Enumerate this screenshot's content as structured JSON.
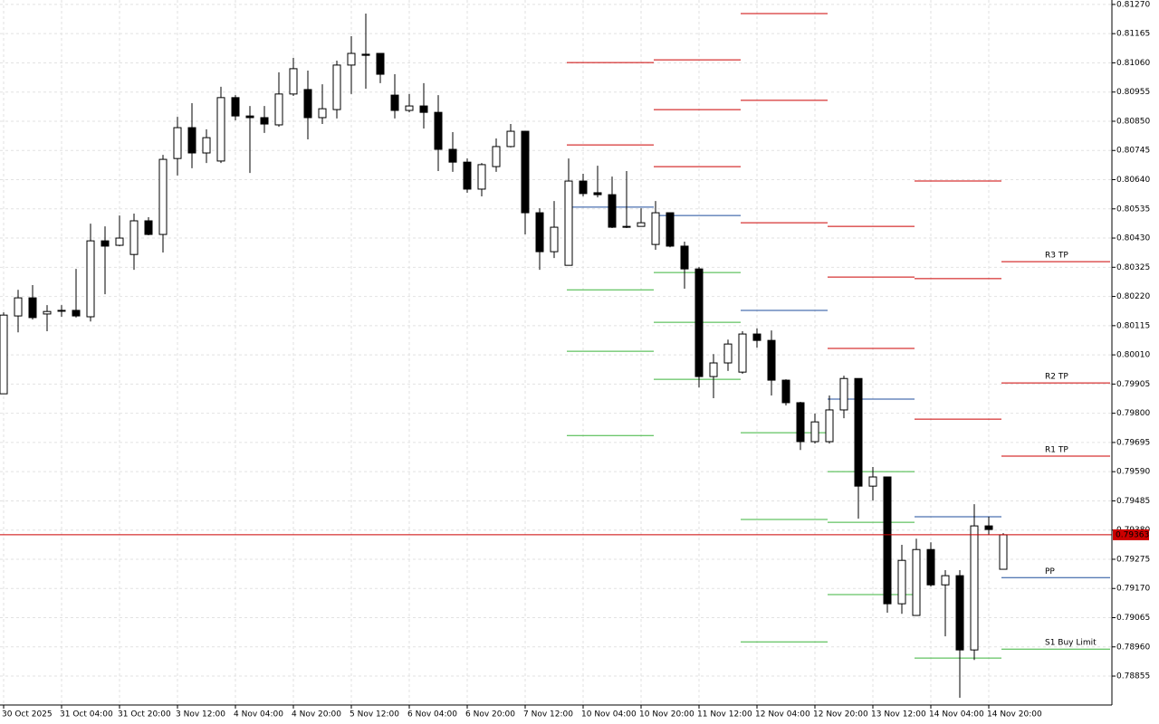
{
  "chart_data": {
    "type": "candlestick",
    "categories": [
      "30 Oct 2025",
      null,
      null,
      null,
      "31 Oct 04:00",
      null,
      null,
      null,
      "31 Oct 20:00",
      null,
      null,
      null,
      "3 Nov 12:00",
      null,
      null,
      null,
      "4 Nov 04:00",
      null,
      null,
      null,
      "4 Nov 20:00",
      null,
      null,
      null,
      "5 Nov 12:00",
      null,
      null,
      null,
      "6 Nov 04:00",
      null,
      null,
      null,
      "6 Nov 20:00",
      null,
      null,
      null,
      "7 Nov 12:00",
      null,
      null,
      null,
      "10 Nov 04:00",
      null,
      null,
      null,
      "10 Nov 20:00",
      null,
      null,
      null,
      "11 Nov 12:00",
      null,
      null,
      null,
      "12 Nov 04:00",
      null,
      null,
      null,
      "12 Nov 20:00",
      null,
      null,
      null,
      "13 Nov 12:00",
      null,
      null,
      null,
      "14 Nov 04:00",
      null,
      null,
      null,
      "14 Nov 20:00",
      null
    ],
    "open": [
      0.7987,
      0.8015,
      0.80215,
      0.80157,
      0.8017,
      0.8017,
      0.80147,
      0.8042,
      0.80404,
      0.80371,
      0.80492,
      0.80443,
      0.80716,
      0.80827,
      0.80736,
      0.80707,
      0.80935,
      0.80869,
      0.80863,
      0.80837,
      0.80948,
      0.80964,
      0.80863,
      0.80892,
      0.81052,
      0.81091,
      0.81094,
      0.80944,
      0.80889,
      0.80905,
      0.80882,
      0.80749,
      0.80703,
      0.80606,
      0.80687,
      0.80759,
      0.80814,
      0.80521,
      0.80381,
      0.80332,
      0.80635,
      0.80593,
      0.80586,
      0.80472,
      0.80472,
      0.80407,
      0.80521,
      0.80401,
      0.80319,
      0.79932,
      0.79981,
      0.79948,
      0.80085,
      0.80062,
      0.79919,
      0.79838,
      0.79698,
      0.79698,
      0.79812,
      0.79925,
      0.79538,
      0.79571,
      0.79115,
      0.79073,
      0.7931,
      0.79183,
      0.79216,
      0.78949,
      0.79395,
      0.79239
    ],
    "high": [
      0.80163,
      0.80244,
      0.80261,
      0.80189,
      0.80189,
      0.80319,
      0.80482,
      0.80472,
      0.80511,
      0.80518,
      0.80505,
      0.80729,
      0.80866,
      0.80915,
      0.80821,
      0.80974,
      0.80944,
      0.80905,
      0.80905,
      0.81026,
      0.81078,
      0.81032,
      0.80983,
      0.81068,
      0.81156,
      0.81237,
      0.81094,
      0.81019,
      0.80948,
      0.80987,
      0.80944,
      0.80811,
      0.80716,
      0.807,
      0.80788,
      0.8084,
      0.80814,
      0.80537,
      0.80563,
      0.80716,
      0.80661,
      0.8069,
      0.80651,
      0.80671,
      0.80537,
      0.80563,
      0.80521,
      0.80417,
      0.80326,
      0.80013,
      0.80065,
      0.80095,
      0.80105,
      0.80098,
      0.79922,
      0.79841,
      0.79799,
      0.79864,
      0.79935,
      0.79925,
      0.79607,
      0.79571,
      0.79327,
      0.79349,
      0.79336,
      0.79236,
      0.79236,
      0.79473,
      0.79428,
      0.79369
    ],
    "low": [
      0.7987,
      0.80091,
      0.80137,
      0.80095,
      0.80147,
      0.80144,
      0.8013,
      0.80228,
      0.80401,
      0.80316,
      0.8044,
      0.80378,
      0.80655,
      0.80681,
      0.807,
      0.807,
      0.80853,
      0.80664,
      0.80808,
      0.8083,
      0.80941,
      0.80785,
      0.8084,
      0.8086,
      0.80948,
      0.80967,
      0.80987,
      0.8086,
      0.80882,
      0.80824,
      0.80671,
      0.80668,
      0.80593,
      0.8058,
      0.80668,
      0.80756,
      0.80443,
      0.80316,
      0.80358,
      0.80332,
      0.8058,
      0.80576,
      0.80466,
      0.80466,
      0.80472,
      0.80388,
      0.80397,
      0.80248,
      0.79893,
      0.79854,
      0.79952,
      0.79942,
      0.80036,
      0.79864,
      0.79828,
      0.79668,
      0.79691,
      0.79691,
      0.79782,
      0.79421,
      0.79486,
      0.79083,
      0.79079,
      0.79073,
      0.79177,
      0.78998,
      0.78777,
      0.78913,
      0.79362,
      0.79239
    ],
    "close": [
      0.80153,
      0.80215,
      0.80144,
      0.80166,
      0.8017,
      0.8015,
      0.8042,
      0.80401,
      0.8043,
      0.80492,
      0.80443,
      0.80713,
      0.80827,
      0.80736,
      0.80791,
      0.80935,
      0.80869,
      0.80863,
      0.8084,
      0.80948,
      0.81039,
      0.80863,
      0.80895,
      0.81052,
      0.81094,
      0.81087,
      0.81019,
      0.80889,
      0.80905,
      0.80882,
      0.80749,
      0.80703,
      0.80606,
      0.80694,
      0.80759,
      0.80814,
      0.80521,
      0.80381,
      0.80469,
      0.80635,
      0.8059,
      0.80586,
      0.80469,
      0.80469,
      0.80485,
      0.80521,
      0.80401,
      0.80319,
      0.79932,
      0.79981,
      0.80049,
      0.80085,
      0.80062,
      0.79919,
      0.79838,
      0.79698,
      0.79769,
      0.79812,
      0.79925,
      0.79538,
      0.79571,
      0.79115,
      0.79271,
      0.7931,
      0.79183,
      0.79216,
      0.78949,
      0.79395,
      0.79382,
      0.79363
    ],
    "up_color": "#ffffff",
    "down_color": "#000000",
    "wick_color": "#000000",
    "levels": [
      {
        "color": "#cc0000",
        "values": [
          null,
          null,
          null,
          null,
          null,
          null,
          null,
          null,
          null,
          null,
          null,
          null,
          null,
          null,
          null,
          null,
          null,
          null,
          null,
          null,
          null,
          null,
          null,
          null,
          null,
          null,
          null,
          null,
          null,
          null,
          null,
          null,
          null,
          null,
          null,
          null,
          null,
          null,
          null,
          0.81061,
          null,
          null,
          null,
          null,
          null,
          0.81071,
          null,
          null,
          null,
          null,
          null,
          0.81237,
          null,
          null,
          null,
          null,
          null,
          0.80472,
          null,
          null,
          null,
          null,
          null,
          0.80635,
          null,
          null,
          null,
          null,
          null,
          null
        ]
      },
      {
        "color": "#cc0000",
        "values": [
          null,
          null,
          null,
          null,
          null,
          null,
          null,
          null,
          null,
          null,
          null,
          null,
          null,
          null,
          null,
          null,
          null,
          null,
          null,
          null,
          null,
          null,
          null,
          null,
          null,
          null,
          null,
          null,
          null,
          null,
          null,
          null,
          null,
          null,
          null,
          null,
          null,
          null,
          null,
          0.80765,
          null,
          null,
          null,
          null,
          null,
          0.80892,
          null,
          null,
          null,
          null,
          null,
          0.80925,
          null,
          null,
          null,
          null,
          null,
          0.8029,
          null,
          null,
          null,
          null,
          null,
          0.80284,
          null,
          null,
          null,
          null,
          null,
          null
        ]
      },
      {
        "color": "#cc0000",
        "values": [
          null,
          null,
          null,
          null,
          null,
          null,
          null,
          null,
          null,
          null,
          null,
          null,
          null,
          null,
          null,
          null,
          null,
          null,
          null,
          null,
          null,
          null,
          null,
          null,
          null,
          null,
          null,
          null,
          null,
          null,
          null,
          null,
          null,
          null,
          null,
          null,
          null,
          null,
          null,
          null,
          null,
          null,
          null,
          null,
          null,
          0.80687,
          null,
          null,
          null,
          null,
          null,
          0.80485,
          null,
          null,
          null,
          null,
          null,
          0.80033,
          null,
          null,
          null,
          null,
          null,
          0.79779,
          null,
          null,
          null,
          null,
          null,
          null
        ]
      },
      {
        "color": "#1f4e9c",
        "values": [
          null,
          null,
          null,
          null,
          null,
          null,
          null,
          null,
          null,
          null,
          null,
          null,
          null,
          null,
          null,
          null,
          null,
          null,
          null,
          null,
          null,
          null,
          null,
          null,
          null,
          null,
          null,
          null,
          null,
          null,
          null,
          null,
          null,
          null,
          null,
          null,
          null,
          null,
          null,
          0.80541,
          null,
          null,
          null,
          null,
          null,
          0.80511,
          null,
          null,
          null,
          null,
          null,
          0.8017,
          null,
          null,
          null,
          null,
          null,
          0.79851,
          null,
          null,
          null,
          null,
          null,
          0.79428,
          null,
          null,
          null,
          null,
          null,
          null
        ]
      },
      {
        "color": "#3cb43c",
        "values": [
          null,
          null,
          null,
          null,
          null,
          null,
          null,
          null,
          null,
          null,
          null,
          null,
          null,
          null,
          null,
          null,
          null,
          null,
          null,
          null,
          null,
          null,
          null,
          null,
          null,
          null,
          null,
          null,
          null,
          null,
          null,
          null,
          null,
          null,
          null,
          null,
          null,
          null,
          null,
          0.80244,
          null,
          null,
          null,
          null,
          null,
          0.80306,
          null,
          null,
          null,
          null,
          null,
          0.7973,
          null,
          null,
          null,
          null,
          null,
          0.7959,
          null,
          null,
          null,
          null,
          null,
          0.7892,
          null,
          null,
          null,
          null,
          null,
          null
        ]
      },
      {
        "color": "#3cb43c",
        "values": [
          null,
          null,
          null,
          null,
          null,
          null,
          null,
          null,
          null,
          null,
          null,
          null,
          null,
          null,
          null,
          null,
          null,
          null,
          null,
          null,
          null,
          null,
          null,
          null,
          null,
          null,
          null,
          null,
          null,
          null,
          null,
          null,
          null,
          null,
          null,
          null,
          null,
          null,
          null,
          0.80023,
          null,
          null,
          null,
          null,
          null,
          0.80127,
          null,
          null,
          null,
          null,
          null,
          0.79418,
          null,
          null,
          null,
          null,
          null,
          0.79408,
          null,
          null,
          null,
          null,
          null,
          null,
          null,
          null,
          null,
          null,
          null,
          null
        ]
      },
      {
        "color": "#3cb43c",
        "values": [
          null,
          null,
          null,
          null,
          null,
          null,
          null,
          null,
          null,
          null,
          null,
          null,
          null,
          null,
          null,
          null,
          null,
          null,
          null,
          null,
          null,
          null,
          null,
          null,
          null,
          null,
          null,
          null,
          null,
          null,
          null,
          null,
          null,
          null,
          null,
          null,
          null,
          null,
          null,
          0.7972,
          null,
          null,
          null,
          null,
          null,
          0.79922,
          null,
          null,
          null,
          null,
          null,
          0.78978,
          null,
          null,
          null,
          null,
          null,
          0.79148,
          null,
          null,
          null,
          null,
          null,
          null,
          null,
          null,
          null,
          null,
          null,
          null
        ]
      }
    ],
    "annotations": [
      {
        "text": "R3 TP",
        "value": 0.80345,
        "color": "#cc0000"
      },
      {
        "text": "R2 TP",
        "value": 0.79909,
        "color": "#cc0000"
      },
      {
        "text": "R1 TP",
        "value": 0.79646,
        "color": "#cc0000"
      },
      {
        "text": "PP",
        "value": 0.79209,
        "color": "#1f4e9c"
      },
      {
        "text": "S1 Buy Limit",
        "value": 0.78952,
        "color": "#3cb43c"
      }
    ],
    "current_price": {
      "value": 0.79363,
      "color": "#cc0000"
    },
    "ylim": [
      0.78751,
      0.81286
    ],
    "yticks": [
      {
        "value": 0.8127,
        "label": "0.81270"
      },
      0.81165,
      {
        "value": 0.8106,
        "label": "0.81060"
      },
      0.80955,
      {
        "value": 0.8085,
        "label": "0.80850"
      },
      0.80745,
      {
        "value": 0.8064,
        "label": "0.80640"
      },
      0.80535,
      {
        "value": 0.8043,
        "label": "0.80430"
      },
      0.80325,
      {
        "value": 0.8022,
        "label": "0.80220"
      },
      0.80115,
      {
        "value": 0.8001,
        "label": "0.80010"
      },
      0.79905,
      {
        "value": 0.798,
        "label": "0.79800"
      },
      0.79695,
      {
        "value": 0.7959,
        "label": "0.79590"
      },
      0.79485,
      {
        "value": 0.7938,
        "label": "0.79380"
      },
      0.79275,
      {
        "value": 0.7917,
        "label": "0.79170"
      },
      0.79065,
      {
        "value": 0.7896,
        "label": "0.78960"
      },
      0.78855
    ],
    "grid": true
  }
}
